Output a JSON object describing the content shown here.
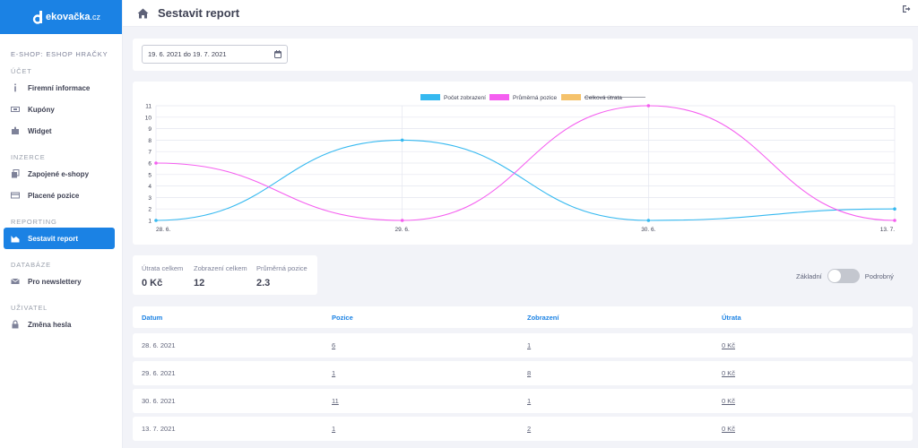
{
  "brand": {
    "name": "ekovačka",
    "tld": ".cz"
  },
  "sidebar": {
    "shop_title": "E-SHOP: ESHOP HRAČKY",
    "sections": [
      {
        "label": "ÚČET",
        "items": [
          {
            "label": "Firemní informace",
            "icon": "info-icon"
          },
          {
            "label": "Kupóny",
            "icon": "ticket-icon"
          },
          {
            "label": "Widget",
            "icon": "puzzle-icon"
          }
        ]
      },
      {
        "label": "INZERCE",
        "items": [
          {
            "label": "Zapojené e-shopy",
            "icon": "copy-icon"
          },
          {
            "label": "Placené pozice",
            "icon": "card-icon"
          }
        ]
      },
      {
        "label": "REPORTING",
        "items": [
          {
            "label": "Sestavit report",
            "icon": "chart-icon",
            "active": true
          }
        ]
      },
      {
        "label": "DATABÁZE",
        "items": [
          {
            "label": "Pro newslettery",
            "icon": "mail-icon"
          }
        ]
      },
      {
        "label": "UŽIVATEL",
        "items": [
          {
            "label": "Změna hesla",
            "icon": "lock-icon"
          }
        ]
      }
    ]
  },
  "header": {
    "title": "Sestavit report"
  },
  "filter": {
    "date_range": "19. 6. 2021 do 19. 7. 2021"
  },
  "chart_data": {
    "type": "line",
    "categories": [
      "28. 6.",
      "29. 6.",
      "30. 6.",
      "13. 7."
    ],
    "series": [
      {
        "name": "Počet zobrazení",
        "values": [
          1,
          8,
          1,
          2
        ],
        "color": "#36b9f0",
        "hidden": false
      },
      {
        "name": "Průměrná pozice",
        "values": [
          6,
          1,
          11,
          1
        ],
        "color": "#f55ff0",
        "hidden": false
      },
      {
        "name": "Celková útrata",
        "values": [
          0,
          0,
          0,
          0
        ],
        "color": "#f5c26b",
        "hidden": true
      }
    ],
    "y_ticks": [
      1,
      2,
      3,
      4,
      5,
      6,
      7,
      8,
      9,
      10,
      11
    ],
    "ylim": [
      1,
      11
    ],
    "grid": true,
    "legend": "top-center"
  },
  "stats": [
    {
      "label": "Útrata celkem",
      "value": "0 Kč"
    },
    {
      "label": "Zobrazení celkem",
      "value": "12"
    },
    {
      "label": "Průměrná pozice",
      "value": "2.3"
    }
  ],
  "view_toggle": {
    "left": "Základní",
    "right": "Podrobný",
    "detailed": false
  },
  "table": {
    "headers": [
      "Datum",
      "Pozice",
      "Zobrazení",
      "Útrata"
    ],
    "rows": [
      [
        "28. 6. 2021",
        "6",
        "1",
        "0 Kč"
      ],
      [
        "29. 6. 2021",
        "1",
        "8",
        "0 Kč"
      ],
      [
        "30. 6. 2021",
        "11",
        "1",
        "0 Kč"
      ],
      [
        "13. 7. 2021",
        "1",
        "2",
        "0 Kč"
      ]
    ]
  }
}
